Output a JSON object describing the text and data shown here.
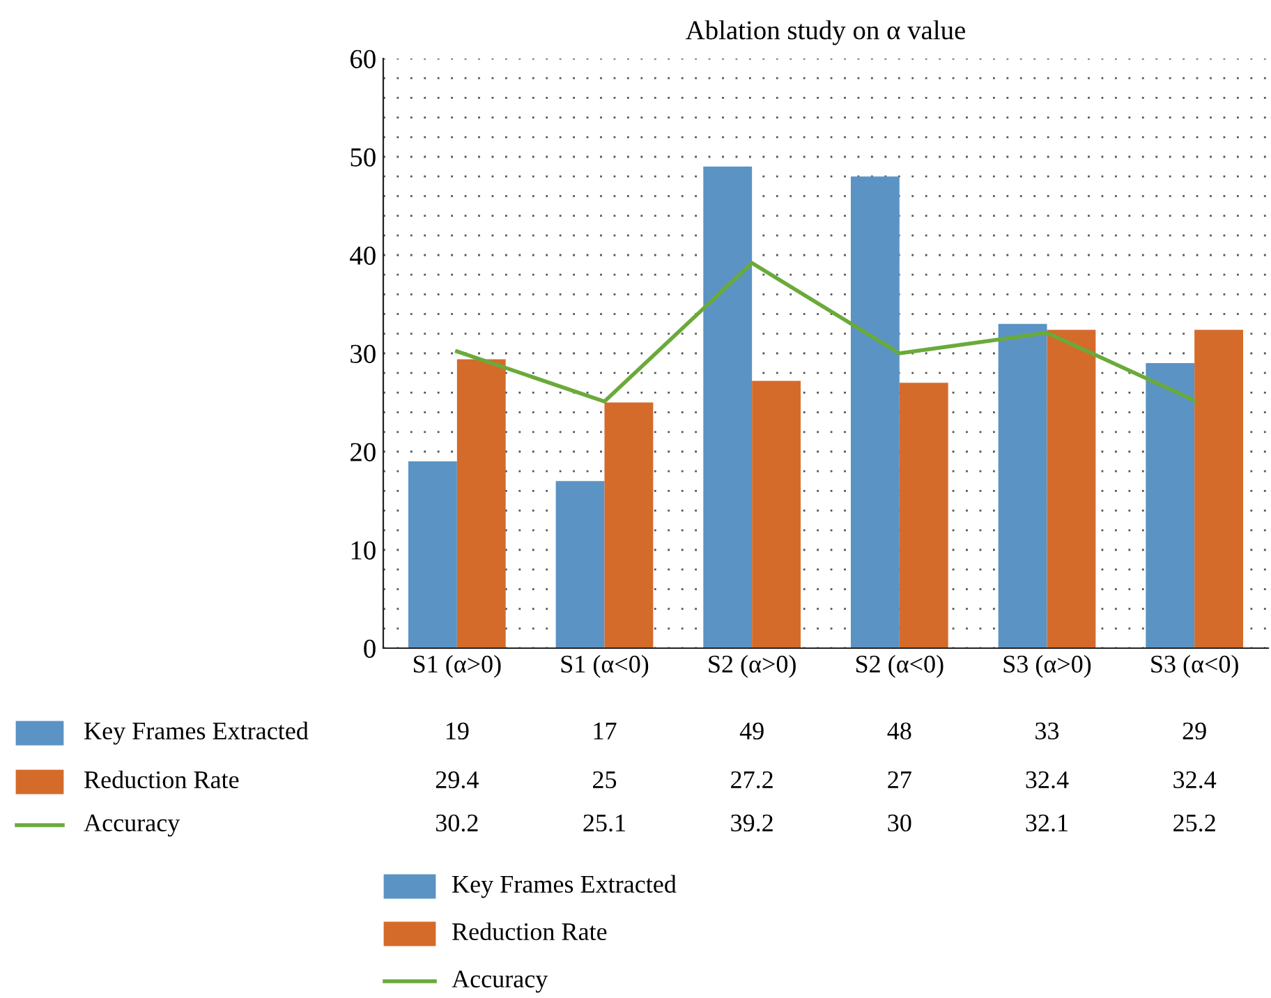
{
  "chart_data": {
    "type": "bar",
    "title": "Ablation study on α value",
    "categories": [
      "S1 (α>0)",
      "S1 (α<0)",
      "S2 (α>0)",
      "S2 (α<0)",
      "S3 (α>0)",
      "S3 (α<0)"
    ],
    "series": [
      {
        "name": "Key Frames Extracted",
        "color": "#5b93c4",
        "values": [
          19,
          17,
          49,
          48,
          33,
          29
        ]
      },
      {
        "name": "Reduction Rate",
        "color": "#d46b2b",
        "values": [
          29.4,
          25,
          27.2,
          27,
          32.4,
          32.4
        ]
      },
      {
        "name": "Accuracy",
        "type": "line",
        "color": "#6aaa3a",
        "values": [
          30.2,
          25.1,
          39.2,
          30,
          32.1,
          25.2
        ]
      }
    ],
    "ylim": [
      0,
      60
    ],
    "yticks": [
      0,
      {
        "value": 2,
        "label": null
      },
      {
        "value": 4,
        "label": null
      },
      {
        "value": 6,
        "label": null
      },
      {
        "value": 8,
        "label": null
      },
      10,
      {
        "value": 12,
        "label": null
      },
      {
        "value": 14,
        "label": null
      },
      {
        "value": 16,
        "label": null
      },
      {
        "value": 18,
        "label": null
      },
      20,
      {
        "value": 22,
        "label": null
      },
      {
        "value": 24,
        "label": null
      },
      {
        "value": 26,
        "label": null
      },
      {
        "value": 28,
        "label": null
      },
      30,
      {
        "value": 32,
        "label": null
      },
      {
        "value": 34,
        "label": null
      },
      {
        "value": 36,
        "label": null
      },
      {
        "value": 38,
        "label": null
      },
      40,
      {
        "value": 42,
        "label": null
      },
      {
        "value": 44,
        "label": null
      },
      {
        "value": 46,
        "label": null
      },
      {
        "value": 48,
        "label": null
      },
      50,
      {
        "value": 52,
        "label": null
      },
      {
        "value": 54,
        "label": null
      },
      {
        "value": 56,
        "label": null
      },
      {
        "value": 58,
        "label": null
      },
      60
    ],
    "grid": "y",
    "line_style": "solid",
    "marker": "none",
    "data_labels": true,
    "legend": "bottom"
  }
}
